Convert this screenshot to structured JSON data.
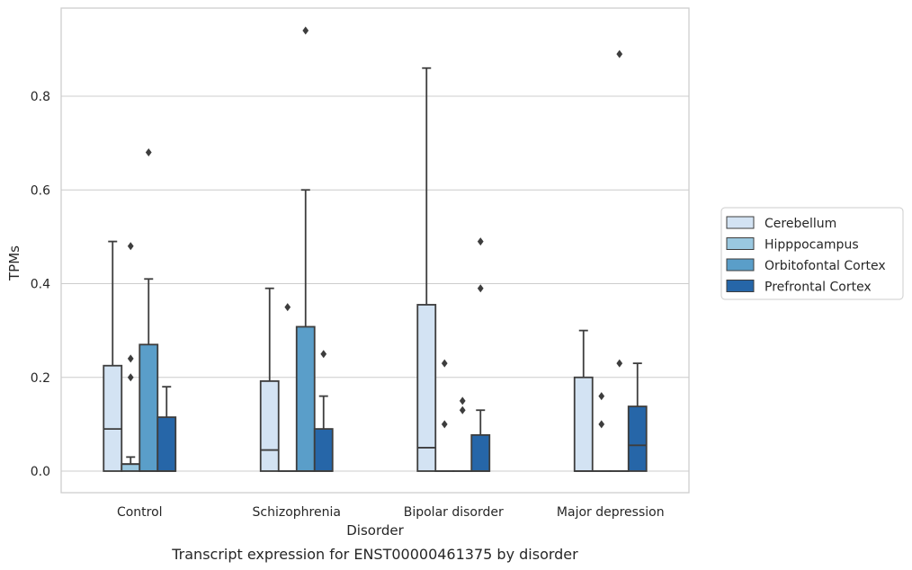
{
  "chart_data": {
    "type": "box",
    "xlabel": "Disorder",
    "ylabel": "TPMs",
    "caption": "Transcript expression for ENST00000461375 by disorder",
    "ylim": [
      -0.045,
      0.99
    ],
    "yticks": [
      "0.0",
      "0.2",
      "0.4",
      "0.6",
      "0.8"
    ],
    "ytick_values": [
      0.0,
      0.2,
      0.4,
      0.6,
      0.8
    ],
    "grid": "horizontal",
    "legend_position": "right",
    "categories": [
      "Control",
      "Schizophrenia",
      "Bipolar disorder",
      "Major depression"
    ],
    "series": [
      {
        "name": "Cerebellum",
        "color": "#d3e3f3",
        "boxes": [
          {
            "q1": 0.0,
            "median": 0.09,
            "q3": 0.225,
            "whisker_low": 0.0,
            "whisker_high": 0.49,
            "outliers": []
          },
          {
            "q1": 0.0,
            "median": 0.045,
            "q3": 0.192,
            "whisker_low": 0.0,
            "whisker_high": 0.39,
            "outliers": []
          },
          {
            "q1": 0.0,
            "median": 0.05,
            "q3": 0.355,
            "whisker_low": 0.0,
            "whisker_high": 0.86,
            "outliers": []
          },
          {
            "q1": 0.0,
            "median": 0.0,
            "q3": 0.2,
            "whisker_low": 0.0,
            "whisker_high": 0.3,
            "outliers": []
          }
        ]
      },
      {
        "name": "Hipppocampus",
        "color": "#9ac8e0",
        "boxes": [
          {
            "q1": 0.0,
            "median": 0.015,
            "q3": 0.015,
            "whisker_low": 0.0,
            "whisker_high": 0.03,
            "outliers": [
              0.2,
              0.24,
              0.48
            ]
          },
          {
            "q1": 0.0,
            "median": 0.0,
            "q3": 0.0,
            "whisker_low": 0.0,
            "whisker_high": 0.0,
            "outliers": [
              0.35
            ]
          },
          {
            "q1": 0.0,
            "median": 0.0,
            "q3": 0.0,
            "whisker_low": 0.0,
            "whisker_high": 0.0,
            "outliers": [
              0.1,
              0.23
            ]
          },
          {
            "q1": 0.0,
            "median": 0.0,
            "q3": 0.0,
            "whisker_low": 0.0,
            "whisker_high": 0.0,
            "outliers": [
              0.1,
              0.16
            ]
          }
        ]
      },
      {
        "name": "Orbitofontal Cortex",
        "color": "#5a9ec9",
        "boxes": [
          {
            "q1": 0.0,
            "median": 0.0,
            "q3": 0.27,
            "whisker_low": 0.0,
            "whisker_high": 0.41,
            "outliers": [
              0.68
            ]
          },
          {
            "q1": 0.0,
            "median": 0.0,
            "q3": 0.308,
            "whisker_low": 0.0,
            "whisker_high": 0.6,
            "outliers": [
              0.94
            ]
          },
          {
            "q1": 0.0,
            "median": 0.0,
            "q3": 0.0,
            "whisker_low": 0.0,
            "whisker_high": 0.0,
            "outliers": [
              0.13,
              0.15
            ]
          },
          {
            "q1": 0.0,
            "median": 0.0,
            "q3": 0.0,
            "whisker_low": 0.0,
            "whisker_high": 0.0,
            "outliers": [
              0.23,
              0.89
            ]
          }
        ]
      },
      {
        "name": "Prefrontal Cortex",
        "color": "#2666a8",
        "boxes": [
          {
            "q1": 0.0,
            "median": 0.0,
            "q3": 0.115,
            "whisker_low": 0.0,
            "whisker_high": 0.18,
            "outliers": []
          },
          {
            "q1": 0.0,
            "median": 0.0,
            "q3": 0.09,
            "whisker_low": 0.0,
            "whisker_high": 0.16,
            "outliers": [
              0.25
            ]
          },
          {
            "q1": 0.0,
            "median": 0.0,
            "q3": 0.077,
            "whisker_low": 0.0,
            "whisker_high": 0.13,
            "outliers": [
              0.39,
              0.49
            ]
          },
          {
            "q1": 0.0,
            "median": 0.055,
            "q3": 0.138,
            "whisker_low": 0.0,
            "whisker_high": 0.23,
            "outliers": []
          }
        ]
      }
    ]
  }
}
